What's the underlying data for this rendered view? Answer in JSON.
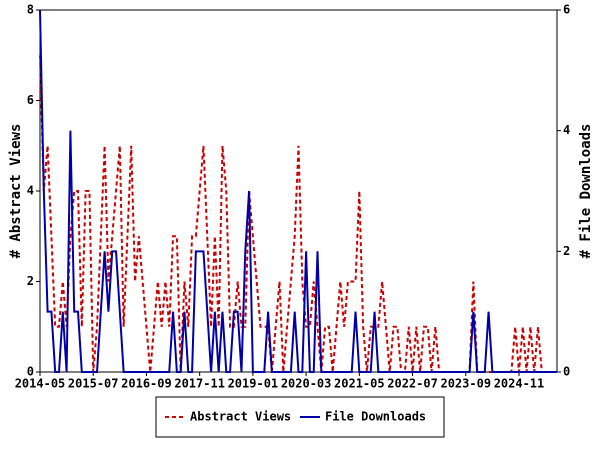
{
  "chart_data": {
    "type": "line",
    "categories": [
      "2014-05",
      null,
      null,
      null,
      null,
      null,
      null,
      null,
      null,
      null,
      null,
      null,
      null,
      null,
      "2015-07",
      null,
      null,
      null,
      null,
      null,
      null,
      null,
      null,
      null,
      null,
      null,
      null,
      null,
      "2016-09",
      null,
      null,
      null,
      null,
      null,
      null,
      null,
      null,
      null,
      null,
      null,
      null,
      null,
      "2017-11",
      null,
      null,
      null,
      null,
      null,
      null,
      null,
      null,
      null,
      null,
      null,
      null,
      null,
      "2019-01",
      null,
      null,
      null,
      null,
      null,
      null,
      null,
      null,
      null,
      null,
      null,
      null,
      null,
      "2020-03",
      null,
      null,
      null,
      null,
      null,
      null,
      null,
      null,
      null,
      null,
      null,
      null,
      null,
      "2021-05",
      null,
      null,
      null,
      null,
      null,
      null,
      null,
      null,
      null,
      null,
      null,
      null,
      null,
      "2022-07",
      null,
      null,
      null,
      null,
      null,
      null,
      null,
      null,
      null,
      null,
      null,
      null,
      null,
      "2023-09",
      null,
      null,
      null,
      null,
      null,
      null,
      null,
      null,
      null,
      null,
      null,
      null,
      null,
      "2024-11",
      null,
      null,
      null,
      null,
      null,
      null,
      null,
      null,
      null,
      null
    ],
    "y_label": "# Abstract Views",
    "y2_label": "# File Downloads",
    "ylim": [
      0,
      8
    ],
    "yticks": [
      0,
      2,
      4,
      6,
      8
    ],
    "y2lim": [
      0,
      6
    ],
    "y2ticks": [
      0,
      2,
      4,
      6
    ],
    "legend": "bottom",
    "series": [
      {
        "name": "Abstract Views",
        "color": "#cc0000",
        "style": "dashed",
        "values": [
          7,
          4,
          5,
          3,
          1,
          1,
          2,
          1,
          3,
          4,
          4,
          1,
          4,
          4,
          0,
          1,
          3,
          5,
          2,
          3,
          4,
          5,
          1,
          3,
          5,
          2,
          3,
          2,
          1,
          0,
          1,
          2,
          1,
          2,
          1,
          3,
          3,
          0,
          2,
          1,
          3,
          3,
          4,
          5,
          3,
          1,
          3,
          1,
          5,
          4,
          1,
          1,
          2,
          1,
          1,
          4,
          3,
          2,
          1,
          1,
          1,
          0,
          1,
          2,
          0,
          1,
          2,
          3,
          5,
          2,
          1,
          1,
          2,
          1,
          0,
          1,
          1,
          0,
          1,
          2,
          1,
          2,
          2,
          2,
          4,
          1,
          0,
          1,
          1,
          1,
          2,
          1,
          0,
          1,
          1,
          0,
          0,
          1,
          0,
          1,
          0,
          1,
          1,
          0,
          1,
          0,
          0,
          0,
          0,
          0,
          0,
          0,
          0,
          0,
          2,
          0,
          0,
          0,
          0,
          0,
          0,
          0,
          0,
          0,
          0,
          1,
          0,
          1,
          0,
          1,
          0,
          1,
          0,
          0,
          0,
          0,
          0
        ]
      },
      {
        "name": "File Downloads",
        "color": "#0000aa",
        "style": "solid",
        "axis": "y2",
        "values": [
          6,
          3,
          1,
          1,
          0,
          0,
          1,
          0,
          4,
          1,
          1,
          0,
          0,
          0,
          0,
          0,
          1,
          2,
          1,
          2,
          2,
          1,
          0,
          0,
          0,
          0,
          0,
          0,
          0,
          0,
          0,
          0,
          0,
          0,
          0,
          1,
          0,
          0,
          1,
          0,
          0,
          2,
          2,
          2,
          1,
          0,
          1,
          0,
          1,
          0,
          0,
          1,
          1,
          0,
          2,
          3,
          0,
          0,
          0,
          0,
          1,
          0,
          0,
          0,
          0,
          0,
          0,
          1,
          0,
          0,
          2,
          0,
          0,
          2,
          0,
          0,
          0,
          0,
          0,
          0,
          0,
          0,
          0,
          1,
          0,
          0,
          0,
          0,
          1,
          0,
          0,
          0,
          0,
          0,
          0,
          0,
          0,
          0,
          0,
          0,
          0,
          0,
          0,
          0,
          0,
          0,
          0,
          0,
          0,
          0,
          0,
          0,
          0,
          0,
          1,
          0,
          0,
          0,
          1,
          0,
          0,
          0,
          0,
          0,
          0,
          0,
          0,
          0,
          0,
          0,
          0,
          0,
          0,
          0,
          0,
          0,
          0
        ]
      }
    ]
  }
}
